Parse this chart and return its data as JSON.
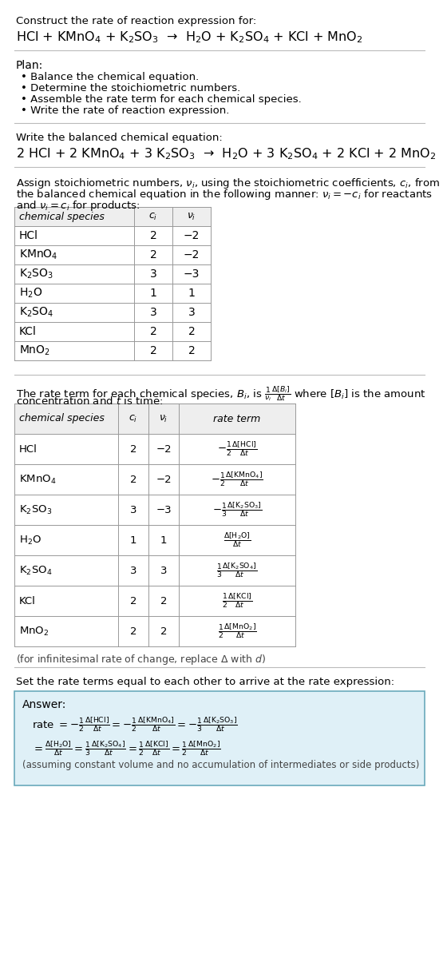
{
  "title_line1": "Construct the rate of reaction expression for:",
  "title_line2": "HCl + KMnO$_4$ + K$_2$SO$_3$  →  H$_2$O + K$_2$SO$_4$ + KCl + MnO$_2$",
  "plan_header": "Plan:",
  "plan_items": [
    "• Balance the chemical equation.",
    "• Determine the stoichiometric numbers.",
    "• Assemble the rate term for each chemical species.",
    "• Write the rate of reaction expression."
  ],
  "balanced_header": "Write the balanced chemical equation:",
  "balanced_eq": "2 HCl + 2 KMnO$_4$ + 3 K$_2$SO$_3$  →  H$_2$O + 3 K$_2$SO$_4$ + 2 KCl + 2 MnO$_2$",
  "stoich_intro_1": "Assign stoichiometric numbers, $\\nu_i$, using the stoichiometric coefficients, $c_i$, from",
  "stoich_intro_2": "the balanced chemical equation in the following manner: $\\nu_i = -c_i$ for reactants",
  "stoich_intro_3": "and $\\nu_i = c_i$ for products:",
  "table1_headers": [
    "chemical species",
    "$c_i$",
    "$\\nu_i$"
  ],
  "table1_rows": [
    [
      "HCl",
      "2",
      "−2"
    ],
    [
      "KMnO$_4$",
      "2",
      "−2"
    ],
    [
      "K$_2$SO$_3$",
      "3",
      "−3"
    ],
    [
      "H$_2$O",
      "1",
      "1"
    ],
    [
      "K$_2$SO$_4$",
      "3",
      "3"
    ],
    [
      "KCl",
      "2",
      "2"
    ],
    [
      "MnO$_2$",
      "2",
      "2"
    ]
  ],
  "rate_intro_1": "The rate term for each chemical species, $B_i$, is $\\frac{1}{\\nu_i}\\frac{\\Delta[B_i]}{\\Delta t}$ where $[B_i]$ is the amount",
  "rate_intro_2": "concentration and $t$ is time:",
  "table2_headers": [
    "chemical species",
    "$c_i$",
    "$\\nu_i$",
    "rate term"
  ],
  "table2_rows": [
    [
      "HCl",
      "2",
      "−2",
      "$-\\frac{1}{2}\\frac{\\Delta[\\mathrm{HCl}]}{\\Delta t}$"
    ],
    [
      "KMnO$_4$",
      "2",
      "−2",
      "$-\\frac{1}{2}\\frac{\\Delta[\\mathrm{KMnO_4}]}{\\Delta t}$"
    ],
    [
      "K$_2$SO$_3$",
      "3",
      "−3",
      "$-\\frac{1}{3}\\frac{\\Delta[\\mathrm{K_2SO_3}]}{\\Delta t}$"
    ],
    [
      "H$_2$O",
      "1",
      "1",
      "$\\frac{\\Delta[\\mathrm{H_2O}]}{\\Delta t}$"
    ],
    [
      "K$_2$SO$_4$",
      "3",
      "3",
      "$\\frac{1}{3}\\frac{\\Delta[\\mathrm{K_2SO_4}]}{\\Delta t}$"
    ],
    [
      "KCl",
      "2",
      "2",
      "$\\frac{1}{2}\\frac{\\Delta[\\mathrm{KCl}]}{\\Delta t}$"
    ],
    [
      "MnO$_2$",
      "2",
      "2",
      "$\\frac{1}{2}\\frac{\\Delta[\\mathrm{MnO_2}]}{\\Delta t}$"
    ]
  ],
  "infinitesimal_note": "(for infinitesimal rate of change, replace Δ with $d$)",
  "set_rate_text": "Set the rate terms equal to each other to arrive at the rate expression:",
  "answer_label": "Answer:",
  "answer_box_color": "#dff0f7",
  "answer_box_border": "#6aaabb",
  "answer_line1": "rate $= -\\frac{1}{2}\\frac{\\Delta[\\mathrm{HCl}]}{\\Delta t} = -\\frac{1}{2}\\frac{\\Delta[\\mathrm{KMnO_4}]}{\\Delta t} = -\\frac{1}{3}\\frac{\\Delta[\\mathrm{K_2SO_3}]}{\\Delta t}$",
  "answer_line2": "$= \\frac{\\Delta[\\mathrm{H_2O}]}{\\Delta t} = \\frac{1}{3}\\frac{\\Delta[\\mathrm{K_2SO_4}]}{\\Delta t} = \\frac{1}{2}\\frac{\\Delta[\\mathrm{KCl}]}{\\Delta t} = \\frac{1}{2}\\frac{\\Delta[\\mathrm{MnO_2}]}{\\Delta t}$",
  "answer_note": "(assuming constant volume and no accumulation of intermediates or side products)",
  "bg_color": "#ffffff",
  "text_color": "#000000",
  "table_border_color": "#999999",
  "separator_color": "#bbbbbb",
  "header_bg": "#eeeeee"
}
